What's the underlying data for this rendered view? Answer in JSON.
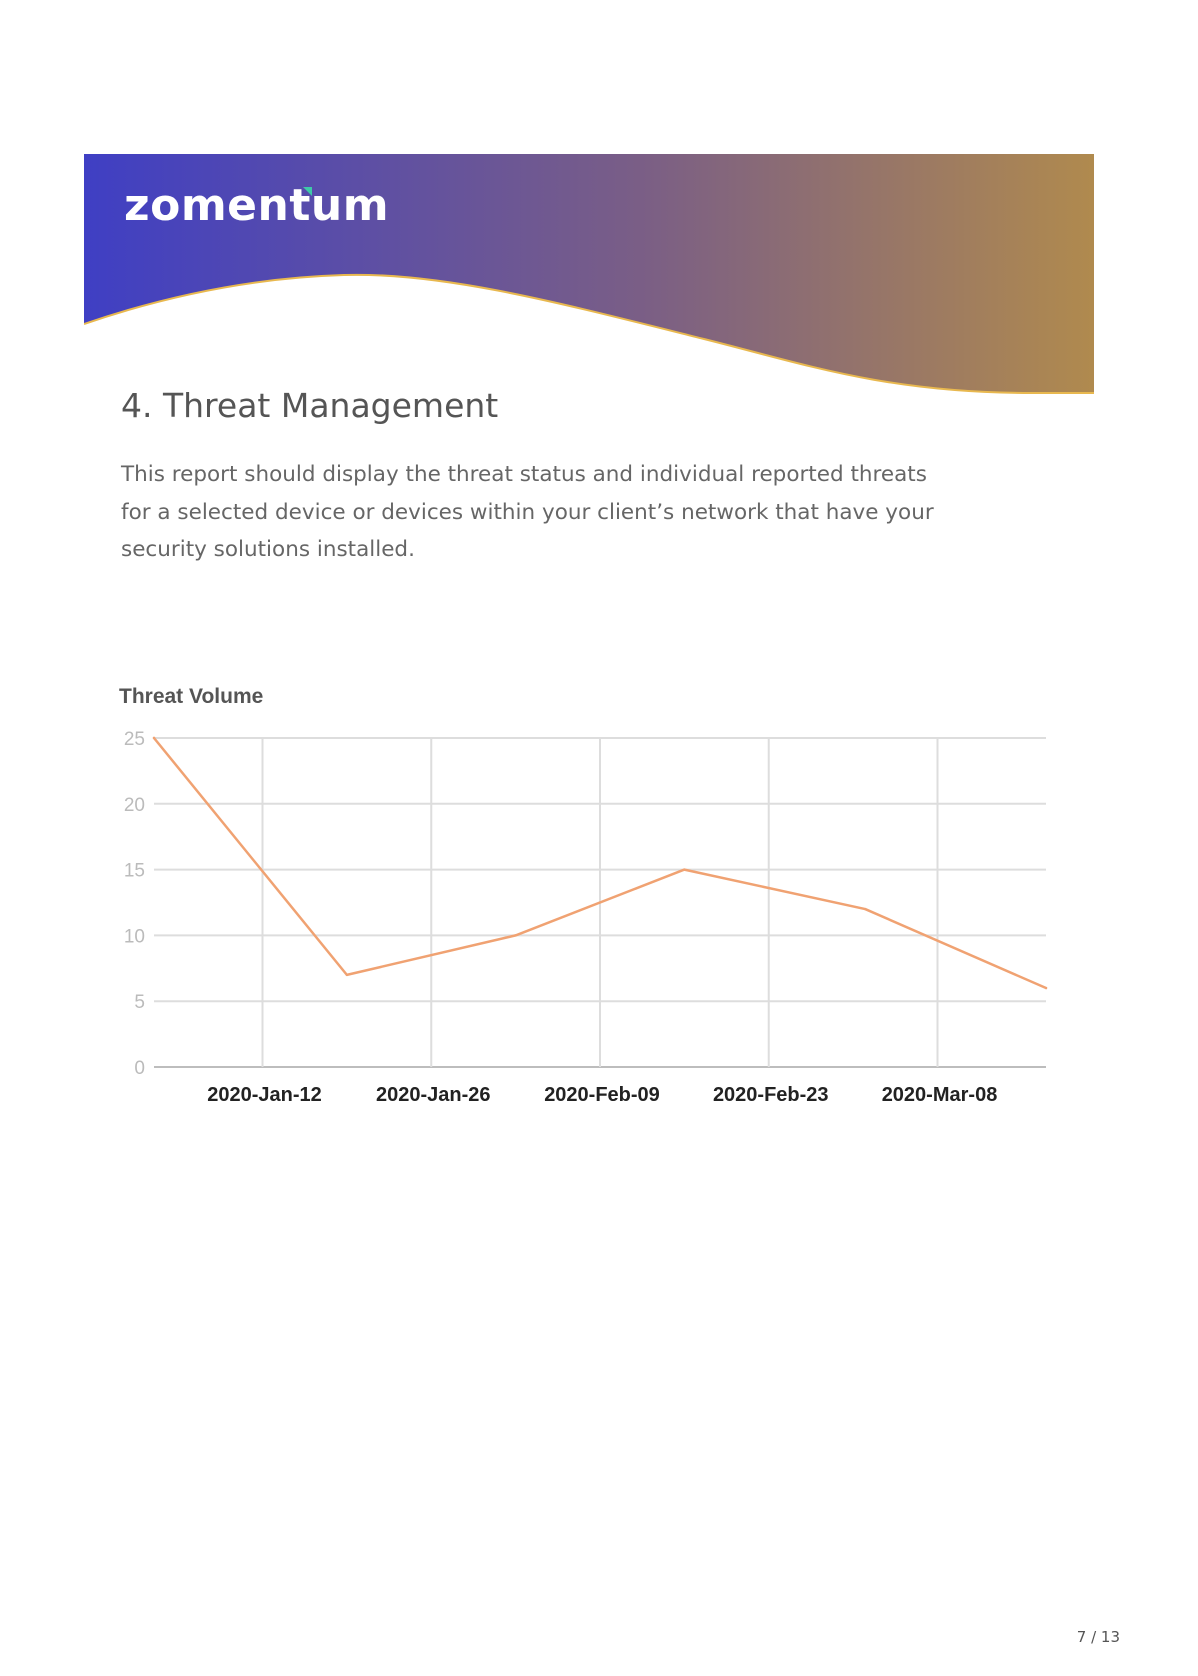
{
  "header": {
    "logo_text": "zomentum",
    "gradient": {
      "start": "#3f3fc4",
      "mid": "#7a5e86",
      "end": "#b08a4e"
    },
    "wave_color": "#e8b84f"
  },
  "section": {
    "title": "4. Threat Management",
    "body": "This report should display the threat status and individual reported threats for a selected device or devices within your client’s network that have your security solutions installed."
  },
  "chart_data": {
    "type": "line",
    "title": "Threat Volume",
    "xlabel": "",
    "ylabel": "",
    "ylim": [
      0,
      25
    ],
    "yticks": [
      0,
      5,
      10,
      15,
      20,
      25
    ],
    "xlim": [
      "2020-Jan-03",
      "2020-Mar-17"
    ],
    "xticks": [
      "2020-Jan-12",
      "2020-Jan-26",
      "2020-Feb-09",
      "2020-Feb-23",
      "2020-Mar-08"
    ],
    "grid": true,
    "series": [
      {
        "color": "#f0a272",
        "points": [
          {
            "x": "2020-Jan-03",
            "y": 25
          },
          {
            "x": "2020-Jan-19",
            "y": 7
          },
          {
            "x": "2020-Feb-02",
            "y": 10
          },
          {
            "x": "2020-Feb-16",
            "y": 15
          },
          {
            "x": "2020-Mar-02",
            "y": 12
          },
          {
            "x": "2020-Mar-17",
            "y": 6
          }
        ]
      }
    ]
  },
  "footer": {
    "page": "7 / 13"
  }
}
